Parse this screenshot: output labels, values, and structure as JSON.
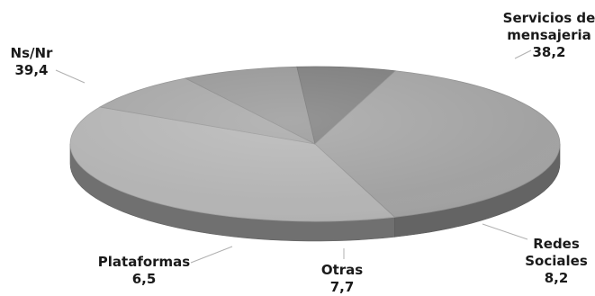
{
  "chart_data": {
    "type": "pie",
    "style": "3d",
    "grayscale": true,
    "slices": [
      {
        "label": [
          "Servicios de",
          "mensajeria"
        ],
        "value": 38.2,
        "display": "38,2",
        "color": "#b4b4b4"
      },
      {
        "label": [
          "Redes",
          "Sociales"
        ],
        "value": 8.2,
        "display": "8,2",
        "color": "#a6a6a6"
      },
      {
        "label": [
          "Otras"
        ],
        "value": 7.7,
        "display": "7,7",
        "color": "#979797"
      },
      {
        "label": [
          "Plataformas"
        ],
        "value": 6.5,
        "display": "6,5",
        "color": "#7d7d7d"
      },
      {
        "label": [
          "Ns/Nr"
        ],
        "value": 39.4,
        "display": "39,4",
        "color": "#a2a2a2"
      }
    ]
  }
}
